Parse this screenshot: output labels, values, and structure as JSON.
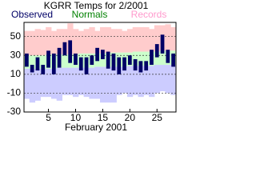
{
  "chart_data": {
    "type": "range-bar",
    "title": "KGRR Temps for 2/2001",
    "xlabel": "February 2001",
    "x": [
      1,
      2,
      3,
      4,
      5,
      6,
      7,
      8,
      9,
      10,
      11,
      12,
      13,
      14,
      15,
      16,
      17,
      18,
      19,
      20,
      21,
      22,
      23,
      24,
      25,
      26,
      27,
      28
    ],
    "xlim": [
      0.5,
      28.5
    ],
    "xticks": [
      5,
      10,
      15,
      20,
      25
    ],
    "ylim": [
      -30,
      65
    ],
    "yticks": [
      -30,
      -10,
      10,
      30,
      50
    ],
    "grid": true,
    "series": [
      {
        "name": "Observed",
        "color": "#000066",
        "low": [
          18,
          12,
          14,
          10,
          17,
          10,
          17,
          30,
          22,
          20,
          14,
          10,
          20,
          24,
          26,
          16,
          14,
          10,
          14,
          20,
          14,
          12,
          14,
          20,
          28,
          32,
          22,
          18
        ],
        "high": [
          32,
          20,
          28,
          20,
          35,
          32,
          38,
          44,
          46,
          32,
          28,
          28,
          30,
          38,
          36,
          34,
          32,
          28,
          28,
          30,
          26,
          24,
          24,
          36,
          42,
          52,
          36,
          32
        ]
      },
      {
        "name": "Normals",
        "color": "#ccffcc",
        "label_color": "#008000",
        "low": [
          16,
          16,
          16,
          16,
          16,
          16,
          17,
          17,
          17,
          17,
          17,
          17,
          17,
          18,
          18,
          18,
          18,
          18,
          18,
          19,
          19,
          19,
          19,
          19,
          20,
          20,
          20,
          20
        ],
        "high": [
          30,
          30,
          30,
          30,
          31,
          31,
          31,
          31,
          31,
          31,
          32,
          32,
          32,
          32,
          32,
          33,
          33,
          33,
          33,
          33,
          34,
          34,
          34,
          34,
          34,
          35,
          35,
          35
        ]
      },
      {
        "name": "Records",
        "color": "#ffcccc",
        "color_low": "#ccccff",
        "label_color": "#ff99cc",
        "low": [
          -16,
          -20,
          -18,
          -14,
          -14,
          -16,
          -18,
          -12,
          -12,
          -14,
          -12,
          -14,
          -16,
          -16,
          -20,
          -20,
          -20,
          -12,
          -10,
          -14,
          -12,
          -14,
          -12,
          -14,
          -10,
          -8,
          -10,
          -12
        ],
        "high": [
          56,
          56,
          58,
          57,
          60,
          56,
          58,
          58,
          64,
          58,
          56,
          58,
          60,
          56,
          60,
          60,
          58,
          58,
          56,
          58,
          60,
          60,
          60,
          58,
          62,
          62,
          63,
          60
        ]
      }
    ]
  }
}
